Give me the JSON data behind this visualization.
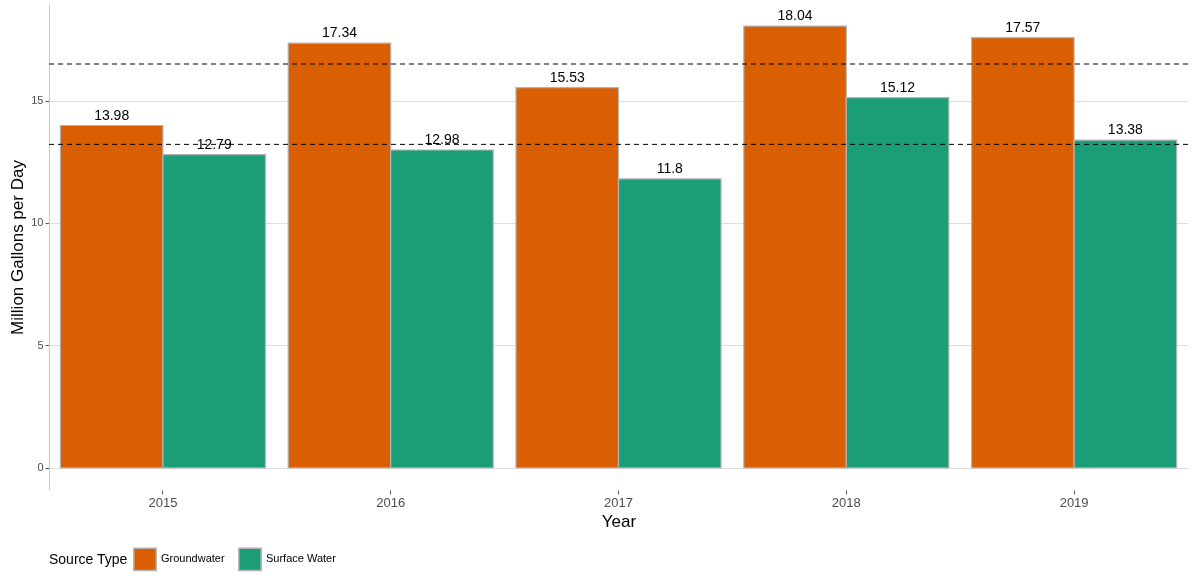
{
  "chart_data": {
    "type": "bar",
    "xlabel": "Year",
    "ylabel": "Million Gallons per Day",
    "legend_title": "Source Type",
    "categories": [
      "2015",
      "2016",
      "2017",
      "2018",
      "2019"
    ],
    "series": [
      {
        "name": "Groundwater",
        "color": "#d95f02",
        "values": [
          13.98,
          17.34,
          15.53,
          18.04,
          17.57
        ]
      },
      {
        "name": "Surface Water",
        "color": "#1b9e77",
        "values": [
          12.79,
          12.98,
          11.8,
          15.12,
          13.38
        ]
      }
    ],
    "ylim": [
      -0.9,
      18.94
    ],
    "yticks": [
      0,
      5,
      10,
      15
    ],
    "grid": "y",
    "legend": "bottom",
    "data_labels": true,
    "ref_lines": [
      {
        "axis": "y",
        "value": 16.49,
        "color": "#000000",
        "line_style": "dashed"
      },
      {
        "axis": "y",
        "value": 13.21,
        "color": "#000000",
        "line_style": "dashed"
      }
    ]
  }
}
